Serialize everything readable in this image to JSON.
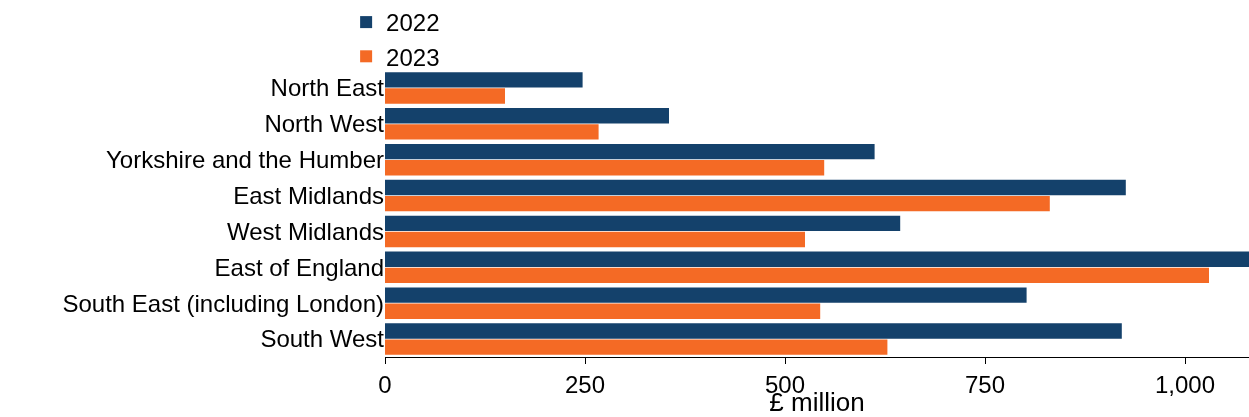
{
  "chart_data": {
    "type": "bar",
    "orientation": "horizontal",
    "xlabel": "£ million",
    "categories": [
      "North East",
      "North West",
      "Yorkshire and the Humber",
      "East Midlands",
      "West Midlands",
      "East of England",
      "South East (including London)",
      "South West"
    ],
    "series": [
      {
        "name": "2022",
        "color": "#14416b",
        "values": [
          247,
          355,
          612,
          926,
          644,
          1080,
          802,
          921
        ]
      },
      {
        "name": "2023",
        "color": "#f46a25",
        "values": [
          150,
          267,
          549,
          831,
          525,
          1030,
          544,
          628
        ]
      }
    ],
    "xlim": [
      0,
      1080
    ],
    "xticks": [
      0,
      250,
      500,
      750,
      {
        "value": 1000,
        "label": "1,000"
      }
    ],
    "legend": "top left"
  }
}
